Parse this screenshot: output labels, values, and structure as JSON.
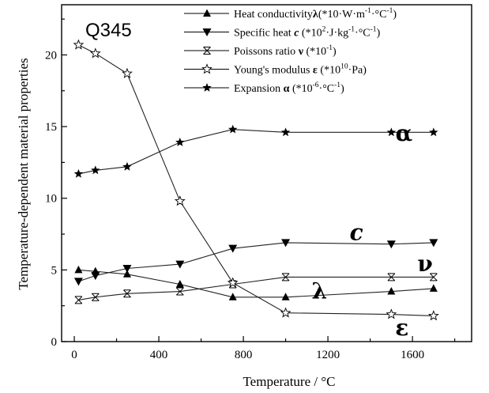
{
  "chart_data": {
    "type": "line",
    "title": "Q345",
    "xlabel": "Temperature / °C",
    "ylabel": "Temperature-dependent material properties",
    "xlim": [
      -60,
      1880
    ],
    "ylim": [
      0,
      23.5
    ],
    "xticks": [
      0,
      400,
      800,
      1200,
      1600
    ],
    "yticks": [
      0,
      5,
      10,
      15,
      20
    ],
    "x_minor_step": 200,
    "y_minor_step": 2.5,
    "grid": false,
    "legend_position": "top-right",
    "series": [
      {
        "name": "Heat conductivity λ (*10·W·m⁻¹·°C⁻¹)",
        "marker": "triangle-up-filled",
        "x": [
          20,
          100,
          250,
          500,
          750,
          1000,
          1500,
          1700
        ],
        "y": [
          5.0,
          4.9,
          4.7,
          4.0,
          3.1,
          3.1,
          3.5,
          3.7
        ]
      },
      {
        "name": "Specific heat c (*10²·J·kg⁻¹·°C⁻¹)",
        "marker": "triangle-down-filled",
        "x": [
          20,
          100,
          250,
          500,
          750,
          1000,
          1500,
          1700
        ],
        "y": [
          4.2,
          4.6,
          5.1,
          5.4,
          6.5,
          6.9,
          6.8,
          6.9
        ]
      },
      {
        "name": "Poissons ratio ν (*10⁻¹)",
        "marker": "x-box",
        "x": [
          20,
          100,
          250,
          500,
          750,
          1000,
          1500,
          1700
        ],
        "y": [
          2.9,
          3.1,
          3.35,
          3.5,
          4.0,
          4.5,
          4.5,
          4.5
        ]
      },
      {
        "name": "Young's modulus ε (*10¹⁰·Pa)",
        "marker": "star-open",
        "x": [
          20,
          100,
          250,
          500,
          750,
          1000,
          1500,
          1700
        ],
        "y": [
          20.7,
          20.1,
          18.7,
          9.8,
          4.1,
          2.0,
          1.9,
          1.8
        ]
      },
      {
        "name": "Expansion α (*10⁻⁶·°C⁻¹)",
        "marker": "star-filled",
        "x": [
          20,
          100,
          250,
          500,
          750,
          1000,
          1500,
          1700
        ],
        "y": [
          11.7,
          11.95,
          12.2,
          13.9,
          14.8,
          14.6,
          14.6,
          14.6
        ]
      }
    ],
    "legend": [
      {
        "before": "Heat conductivity",
        "sym": "λ",
        "sym_style": "bold",
        "unit_pre": "(*10·W·m",
        "sup1": "-1",
        "unit_mid": "·°C",
        "sup2": "-1",
        "unit_post": ")"
      },
      {
        "before": "Specific heat ",
        "sym": "c",
        "sym_style": "italic",
        "unit_pre": " (*10",
        "sup1": "2",
        "unit_mid": "·J·kg",
        "sup2": "-1",
        "unit_mid2": "·°C",
        "sup3": "-1",
        "unit_post": ")"
      },
      {
        "before": "Poissons ratio ",
        "sym": "ν",
        "sym_style": "bold",
        "unit_pre": " (*10",
        "sup1": "-1",
        "unit_post": ")"
      },
      {
        "before": "Young's modulus ",
        "sym": "ε",
        "sym_style": "bold",
        "unit_pre": " (*10",
        "sup1": "10",
        "unit_post": "·Pa)"
      },
      {
        "before": "Expansion ",
        "sym": "α",
        "sym_style": "bold",
        "unit_pre": " (*10",
        "sup1": "-6",
        "unit_mid": "·°C",
        "sup2": "-1",
        "unit_post": ")"
      }
    ],
    "annotations": [
      {
        "text": "α",
        "series": "expansion",
        "style": "bold"
      },
      {
        "text": "c",
        "series": "specific-heat",
        "style": "italic-bold"
      },
      {
        "text": "ν",
        "series": "poisson",
        "style": "bold"
      },
      {
        "text": "λ",
        "series": "conductivity",
        "style": "bold"
      },
      {
        "text": "ε",
        "series": "youngs",
        "style": "bold"
      }
    ]
  }
}
